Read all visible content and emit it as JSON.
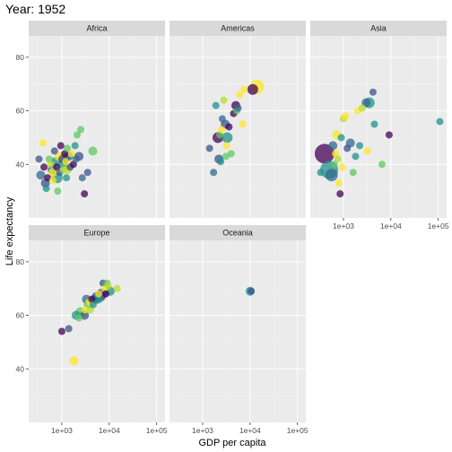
{
  "chart_data": {
    "type": "scatter",
    "title": "Year: 1952",
    "xlabel": "GDP per capita",
    "ylabel": "Life expectancy",
    "xscale": "log10",
    "xlim": [
      200,
      150000
    ],
    "ylim": [
      20,
      88
    ],
    "xticks": [
      1000,
      10000,
      100000
    ],
    "xtick_labels": [
      "1e+03",
      "1e+04",
      "1e+05"
    ],
    "yticks": [
      40,
      60,
      80
    ],
    "ytick_labels": [
      "40",
      "60",
      "80"
    ],
    "grid": true,
    "legend": "none",
    "facets": [
      {
        "name": "Africa",
        "points": [
          {
            "x": 330,
            "y": 42,
            "c": "#3b528b",
            "s": 4
          },
          {
            "x": 360,
            "y": 36,
            "c": "#31688e",
            "s": 5
          },
          {
            "x": 400,
            "y": 48,
            "c": "#fde725",
            "s": 4
          },
          {
            "x": 420,
            "y": 39,
            "c": "#440154",
            "s": 4
          },
          {
            "x": 450,
            "y": 33,
            "c": "#3b528b",
            "s": 5
          },
          {
            "x": 470,
            "y": 31,
            "c": "#21918c",
            "s": 4
          },
          {
            "x": 500,
            "y": 35,
            "c": "#440154",
            "s": 4
          },
          {
            "x": 540,
            "y": 42,
            "c": "#5ec962",
            "s": 4
          },
          {
            "x": 580,
            "y": 40,
            "c": "#b5de2b",
            "s": 4
          },
          {
            "x": 620,
            "y": 38,
            "c": "#31688e",
            "s": 5
          },
          {
            "x": 650,
            "y": 34,
            "c": "#fde725",
            "s": 4
          },
          {
            "x": 700,
            "y": 45,
            "c": "#3b528b",
            "s": 4
          },
          {
            "x": 730,
            "y": 41,
            "c": "#21918c",
            "s": 5
          },
          {
            "x": 780,
            "y": 39,
            "c": "#440154",
            "s": 4
          },
          {
            "x": 820,
            "y": 30,
            "c": "#5ec962",
            "s": 4
          },
          {
            "x": 870,
            "y": 43,
            "c": "#fde725",
            "s": 5
          },
          {
            "x": 900,
            "y": 37,
            "c": "#31688e",
            "s": 4
          },
          {
            "x": 950,
            "y": 47,
            "c": "#440154",
            "s": 4
          },
          {
            "x": 1000,
            "y": 42,
            "c": "#3b528b",
            "s": 4
          },
          {
            "x": 1050,
            "y": 40,
            "c": "#21918c",
            "s": 5
          },
          {
            "x": 1100,
            "y": 38,
            "c": "#b5de2b",
            "s": 4
          },
          {
            "x": 1150,
            "y": 44,
            "c": "#440154",
            "s": 4
          },
          {
            "x": 1200,
            "y": 41,
            "c": "#fde725",
            "s": 4
          },
          {
            "x": 1250,
            "y": 35,
            "c": "#21918c",
            "s": 4
          },
          {
            "x": 1300,
            "y": 46,
            "c": "#5ec962",
            "s": 4
          },
          {
            "x": 1400,
            "y": 43,
            "c": "#31688e",
            "s": 5
          },
          {
            "x": 1500,
            "y": 39,
            "c": "#3b528b",
            "s": 4
          },
          {
            "x": 1600,
            "y": 44,
            "c": "#fde725",
            "s": 4
          },
          {
            "x": 1750,
            "y": 40,
            "c": "#440154",
            "s": 4
          },
          {
            "x": 1900,
            "y": 47,
            "c": "#21918c",
            "s": 4
          },
          {
            "x": 2000,
            "y": 42,
            "c": "#31688e",
            "s": 4
          },
          {
            "x": 2100,
            "y": 51,
            "c": "#5ec962",
            "s": 4
          },
          {
            "x": 2300,
            "y": 43,
            "c": "#3b528b",
            "s": 5
          },
          {
            "x": 2500,
            "y": 53,
            "c": "#5ec962",
            "s": 4
          },
          {
            "x": 2700,
            "y": 35,
            "c": "#31688e",
            "s": 4
          },
          {
            "x": 3000,
            "y": 29,
            "c": "#440154",
            "s": 4
          },
          {
            "x": 3500,
            "y": 37,
            "c": "#3b528b",
            "s": 4
          },
          {
            "x": 4500,
            "y": 45,
            "c": "#5ec962",
            "s": 5
          },
          {
            "x": 800,
            "y": 35,
            "c": "#21918c",
            "s": 6
          },
          {
            "x": 1100,
            "y": 42,
            "c": "#31688e",
            "s": 6
          },
          {
            "x": 650,
            "y": 37,
            "c": "#fde725",
            "s": 5
          },
          {
            "x": 1300,
            "y": 38,
            "c": "#b5de2b",
            "s": 5
          }
        ]
      },
      {
        "name": "Americas",
        "points": [
          {
            "x": 1400,
            "y": 46,
            "c": "#3b528b",
            "s": 4
          },
          {
            "x": 1700,
            "y": 37,
            "c": "#31688e",
            "s": 4
          },
          {
            "x": 1900,
            "y": 62,
            "c": "#21918c",
            "s": 4
          },
          {
            "x": 2100,
            "y": 50,
            "c": "#440154",
            "s": 6
          },
          {
            "x": 2200,
            "y": 42,
            "c": "#3b528b",
            "s": 5
          },
          {
            "x": 2300,
            "y": 51,
            "c": "#5ec962",
            "s": 4
          },
          {
            "x": 2400,
            "y": 41,
            "c": "#21918c",
            "s": 4
          },
          {
            "x": 2500,
            "y": 53,
            "c": "#fde725",
            "s": 4
          },
          {
            "x": 2600,
            "y": 57,
            "c": "#31688e",
            "s": 4
          },
          {
            "x": 2800,
            "y": 64,
            "c": "#b5de2b",
            "s": 4
          },
          {
            "x": 3000,
            "y": 55,
            "c": "#3b528b",
            "s": 5
          },
          {
            "x": 3100,
            "y": 43,
            "c": "#5ec962",
            "s": 4
          },
          {
            "x": 3200,
            "y": 47,
            "c": "#fde725",
            "s": 4
          },
          {
            "x": 3300,
            "y": 50,
            "c": "#21918c",
            "s": 6
          },
          {
            "x": 3600,
            "y": 54,
            "c": "#440154",
            "s": 4
          },
          {
            "x": 4000,
            "y": 44,
            "c": "#5ec962",
            "s": 4
          },
          {
            "x": 4500,
            "y": 59,
            "c": "#440154",
            "s": 4
          },
          {
            "x": 5000,
            "y": 62,
            "c": "#440154",
            "s": 5
          },
          {
            "x": 5300,
            "y": 60,
            "c": "#5ec962",
            "s": 4
          },
          {
            "x": 5600,
            "y": 61,
            "c": "#31688e",
            "s": 4
          },
          {
            "x": 6000,
            "y": 66,
            "c": "#fde725",
            "s": 4
          },
          {
            "x": 7000,
            "y": 55,
            "c": "#fde725",
            "s": 4
          },
          {
            "x": 7500,
            "y": 68,
            "c": "#fde725",
            "s": 4
          },
          {
            "x": 11400,
            "y": 68,
            "c": "#440154",
            "s": 6
          },
          {
            "x": 14000,
            "y": 69,
            "c": "#fde725",
            "s": 8
          }
        ]
      },
      {
        "name": "Asia",
        "points": [
          {
            "x": 330,
            "y": 37,
            "c": "#21918c",
            "s": 4
          },
          {
            "x": 400,
            "y": 44,
            "c": "#440154",
            "s": 11
          },
          {
            "x": 500,
            "y": 38,
            "c": "#21918c",
            "s": 10
          },
          {
            "x": 560,
            "y": 36,
            "c": "#31688e",
            "s": 7
          },
          {
            "x": 600,
            "y": 47,
            "c": "#31688e",
            "s": 5
          },
          {
            "x": 640,
            "y": 40,
            "c": "#5ec962",
            "s": 4
          },
          {
            "x": 680,
            "y": 44,
            "c": "#fde725",
            "s": 4
          },
          {
            "x": 720,
            "y": 51,
            "c": "#fde725",
            "s": 5
          },
          {
            "x": 760,
            "y": 42,
            "c": "#b5de2b",
            "s": 4
          },
          {
            "x": 800,
            "y": 33,
            "c": "#fde725",
            "s": 4
          },
          {
            "x": 850,
            "y": 29,
            "c": "#440154",
            "s": 4
          },
          {
            "x": 900,
            "y": 50,
            "c": "#21918c",
            "s": 4
          },
          {
            "x": 950,
            "y": 39,
            "c": "#fde725",
            "s": 4
          },
          {
            "x": 1000,
            "y": 57,
            "c": "#b5de2b",
            "s": 4
          },
          {
            "x": 1100,
            "y": 58,
            "c": "#fde725",
            "s": 4
          },
          {
            "x": 1200,
            "y": 46,
            "c": "#3b528b",
            "s": 4
          },
          {
            "x": 1400,
            "y": 48,
            "c": "#31688e",
            "s": 5
          },
          {
            "x": 1600,
            "y": 37,
            "c": "#5ec962",
            "s": 4
          },
          {
            "x": 1800,
            "y": 43,
            "c": "#21918c",
            "s": 4
          },
          {
            "x": 2000,
            "y": 60,
            "c": "#fde725",
            "s": 4
          },
          {
            "x": 2200,
            "y": 47,
            "c": "#21918c",
            "s": 4
          },
          {
            "x": 2500,
            "y": 61,
            "c": "#b5de2b",
            "s": 4
          },
          {
            "x": 3000,
            "y": 63,
            "c": "#31688e",
            "s": 5
          },
          {
            "x": 3200,
            "y": 45,
            "c": "#fde725",
            "s": 4
          },
          {
            "x": 3500,
            "y": 63,
            "c": "#21918c",
            "s": 6
          },
          {
            "x": 4200,
            "y": 67,
            "c": "#3b528b",
            "s": 4
          },
          {
            "x": 4500,
            "y": 55,
            "c": "#21918c",
            "s": 4
          },
          {
            "x": 6500,
            "y": 40,
            "c": "#5ec962",
            "s": 4
          },
          {
            "x": 9200,
            "y": 51,
            "c": "#440154",
            "s": 4
          },
          {
            "x": 108000,
            "y": 56,
            "c": "#21918c",
            "s": 4
          }
        ]
      },
      {
        "name": "Europe",
        "points": [
          {
            "x": 1000,
            "y": 54,
            "c": "#440154",
            "s": 4
          },
          {
            "x": 1400,
            "y": 55,
            "c": "#3b528b",
            "s": 4
          },
          {
            "x": 1800,
            "y": 43,
            "c": "#fde725",
            "s": 5
          },
          {
            "x": 2000,
            "y": 60,
            "c": "#21918c",
            "s": 5
          },
          {
            "x": 2300,
            "y": 59,
            "c": "#5ec962",
            "s": 4
          },
          {
            "x": 2500,
            "y": 61,
            "c": "#5ec962",
            "s": 6
          },
          {
            "x": 3000,
            "y": 60,
            "c": "#3b528b",
            "s": 5
          },
          {
            "x": 3100,
            "y": 62,
            "c": "#fde725",
            "s": 4
          },
          {
            "x": 3300,
            "y": 66,
            "c": "#31688e",
            "s": 5
          },
          {
            "x": 3600,
            "y": 64,
            "c": "#5ec962",
            "s": 5
          },
          {
            "x": 3800,
            "y": 65,
            "c": "#fde725",
            "s": 4
          },
          {
            "x": 4000,
            "y": 62,
            "c": "#b5de2b",
            "s": 4
          },
          {
            "x": 4300,
            "y": 66,
            "c": "#440154",
            "s": 4
          },
          {
            "x": 4600,
            "y": 64,
            "c": "#21918c",
            "s": 4
          },
          {
            "x": 5000,
            "y": 66,
            "c": "#3b528b",
            "s": 5
          },
          {
            "x": 5300,
            "y": 67,
            "c": "#31688e",
            "s": 5
          },
          {
            "x": 5700,
            "y": 66,
            "c": "#21918c",
            "s": 5
          },
          {
            "x": 6000,
            "y": 68,
            "c": "#fde725",
            "s": 4
          },
          {
            "x": 6400,
            "y": 67,
            "c": "#31688e",
            "s": 6
          },
          {
            "x": 7000,
            "y": 68,
            "c": "#3b528b",
            "s": 6
          },
          {
            "x": 7400,
            "y": 72,
            "c": "#3b528b",
            "s": 4
          },
          {
            "x": 8000,
            "y": 70,
            "c": "#fde725",
            "s": 4
          },
          {
            "x": 8500,
            "y": 68,
            "c": "#440154",
            "s": 4
          },
          {
            "x": 9000,
            "y": 72,
            "c": "#5ec962",
            "s": 4
          },
          {
            "x": 9500,
            "y": 71,
            "c": "#b5de2b",
            "s": 4
          },
          {
            "x": 10500,
            "y": 69,
            "c": "#21918c",
            "s": 5
          },
          {
            "x": 14700,
            "y": 70,
            "c": "#b5de2b",
            "s": 4
          }
        ]
      },
      {
        "name": "Oceania",
        "points": [
          {
            "x": 10040,
            "y": 69,
            "c": "#21918c",
            "s": 5
          },
          {
            "x": 10560,
            "y": 69,
            "c": "#3b528b",
            "s": 4
          }
        ]
      }
    ]
  }
}
